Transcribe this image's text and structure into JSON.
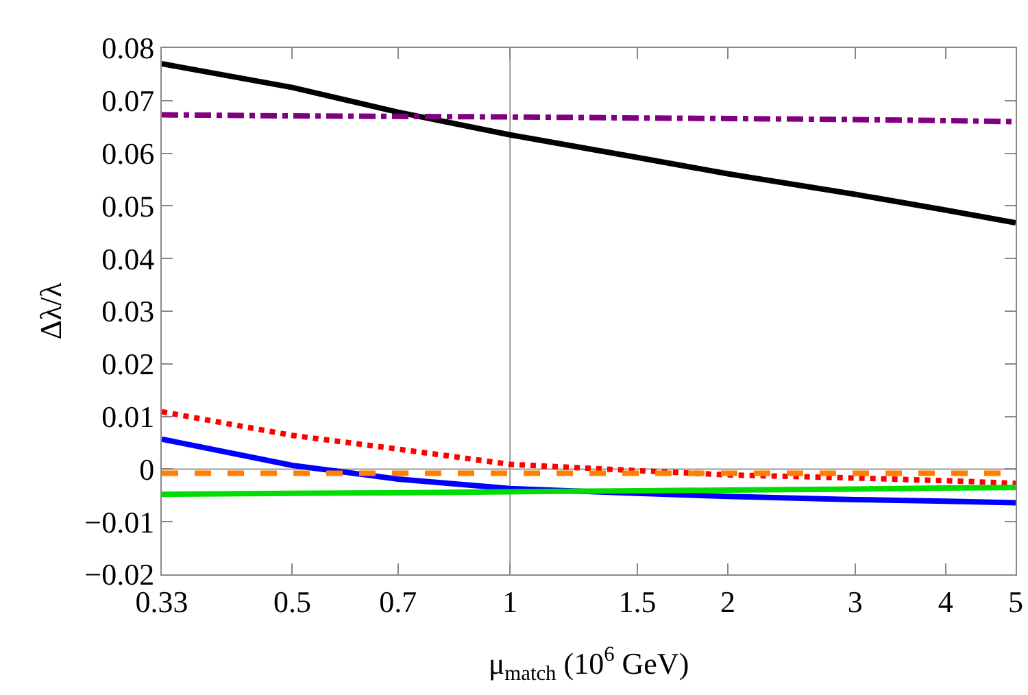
{
  "chart_data": {
    "type": "line",
    "xlabel": "μ$_{match}$ (10$^{6}$ GeV)",
    "ylabel": "Δλ/λ",
    "log": "x",
    "xlim": [
      0.33,
      5
    ],
    "xticks": [
      0.33,
      0.5,
      0.7,
      1,
      1.5,
      2,
      3,
      4,
      5
    ],
    "ylim": [
      -0.02,
      0.08
    ],
    "yticks": [
      -0.02,
      -0.01,
      0,
      0.01,
      0.02,
      0.03,
      0.04,
      0.05,
      0.06,
      0.07,
      0.08
    ],
    "grid": false,
    "marker": "none",
    "x": [
      0.33,
      0.5,
      0.7,
      1,
      1.5,
      2,
      3,
      4,
      5
    ],
    "series": [
      {
        "color": "#000000",
        "line_style": "solid",
        "values": [
          0.077,
          0.0725,
          0.0678,
          0.0635,
          0.0592,
          0.0561,
          0.0522,
          0.0492,
          0.0468
        ]
      },
      {
        "color": "#800080",
        "line_style": "dashdot",
        "values": [
          0.0673,
          0.0671,
          0.067,
          0.0669,
          0.0667,
          0.0666,
          0.0664,
          0.0662,
          0.066
        ]
      },
      {
        "color": "#ff0000",
        "line_style": "dotted",
        "values": [
          0.0109,
          0.0064,
          0.0038,
          0.0009,
          -0.0003,
          -0.0011,
          -0.0017,
          -0.0022,
          -0.0027
        ]
      },
      {
        "color": "#0000ff",
        "line_style": "solid",
        "values": [
          0.0057,
          0.0007,
          -0.0019,
          -0.0037,
          -0.0046,
          -0.0052,
          -0.0058,
          -0.0061,
          -0.0064
        ]
      },
      {
        "color": "#00dd00",
        "line_style": "solid",
        "values": [
          -0.0048,
          -0.0046,
          -0.0045,
          -0.0043,
          -0.0041,
          -0.004,
          -0.0038,
          -0.0036,
          -0.0035
        ]
      },
      {
        "color": "#ff8000",
        "line_style": "dashed",
        "values": [
          -0.0008,
          -0.0008,
          -0.0008,
          -0.0008,
          -0.0008,
          -0.0008,
          -0.0008,
          -0.0008,
          -0.0008
        ]
      }
    ],
    "ref_lines": [
      {
        "axis": "x",
        "value": 1,
        "label": null,
        "color": "#999999"
      },
      {
        "axis": "y",
        "value": 0,
        "label": null,
        "color": "#999999"
      }
    ]
  }
}
